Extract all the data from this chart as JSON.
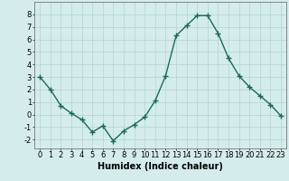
{
  "x": [
    0,
    1,
    2,
    3,
    4,
    5,
    6,
    7,
    8,
    9,
    10,
    11,
    12,
    13,
    14,
    15,
    16,
    17,
    18,
    19,
    20,
    21,
    22,
    23
  ],
  "y": [
    3,
    2,
    0.7,
    0.1,
    -0.4,
    -1.4,
    -0.9,
    -2.1,
    -1.3,
    -0.8,
    -0.2,
    1.1,
    3.1,
    6.3,
    7.1,
    7.9,
    7.9,
    6.5,
    4.5,
    3.1,
    2.2,
    1.5,
    0.8,
    -0.1
  ],
  "line_color": "#1a6b5a",
  "marker": "+",
  "markersize": 4,
  "linewidth": 1.0,
  "xlabel": "Humidex (Indice chaleur)",
  "xlabel_fontsize": 7,
  "ylabel_ticks": [
    -2,
    -1,
    0,
    1,
    2,
    3,
    4,
    5,
    6,
    7,
    8
  ],
  "xlim": [
    -0.5,
    23.5
  ],
  "ylim": [
    -2.7,
    9.0
  ],
  "bg_color": "#d4edec",
  "grid_color": "#b8d8d5",
  "tick_fontsize": 6,
  "xtick_labels": [
    "0",
    "1",
    "2",
    "3",
    "4",
    "5",
    "6",
    "7",
    "8",
    "9",
    "10",
    "11",
    "12",
    "13",
    "14",
    "15",
    "16",
    "17",
    "18",
    "19",
    "20",
    "21",
    "22",
    "23"
  ]
}
